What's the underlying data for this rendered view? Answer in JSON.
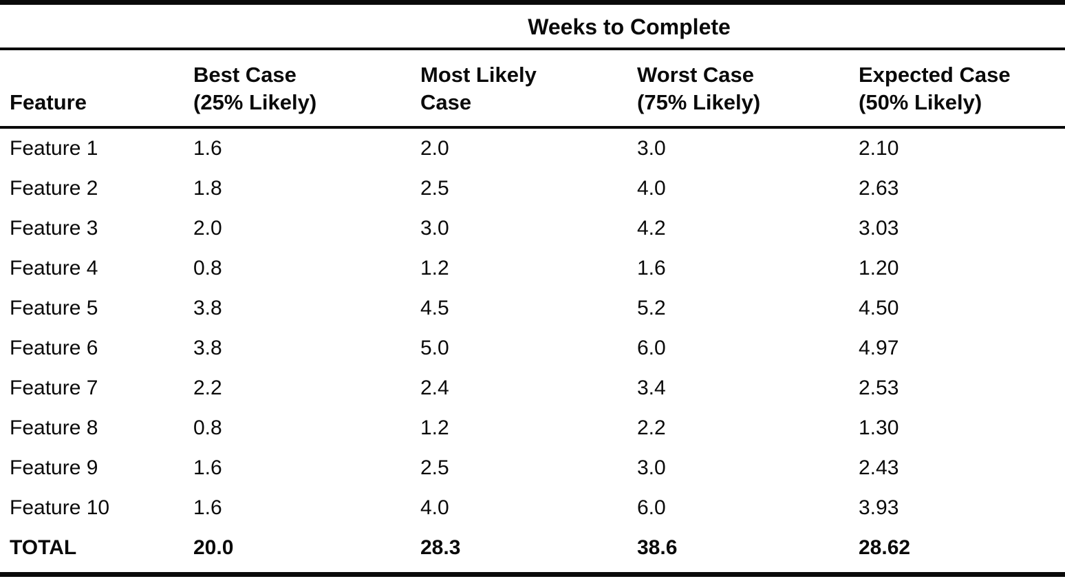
{
  "table": {
    "span_header": "Weeks to Complete",
    "column_headers": [
      {
        "line1": "Feature",
        "line2": ""
      },
      {
        "line1": "Best Case",
        "line2": "(25% Likely)"
      },
      {
        "line1": "Most Likely",
        "line2": "Case"
      },
      {
        "line1": "Worst Case",
        "line2": "(75% Likely)"
      },
      {
        "line1": "Expected Case",
        "line2": "(50% Likely)"
      }
    ],
    "rows": [
      {
        "cells": [
          "Feature 1",
          "1.6",
          "2.0",
          "3.0",
          "2.10"
        ]
      },
      {
        "cells": [
          "Feature 2",
          "1.8",
          "2.5",
          "4.0",
          "2.63"
        ]
      },
      {
        "cells": [
          "Feature 3",
          "2.0",
          "3.0",
          "4.2",
          "3.03"
        ]
      },
      {
        "cells": [
          "Feature 4",
          "0.8",
          "1.2",
          "1.6",
          "1.20"
        ]
      },
      {
        "cells": [
          "Feature 5",
          "3.8",
          "4.5",
          "5.2",
          "4.50"
        ]
      },
      {
        "cells": [
          "Feature 6",
          "3.8",
          "5.0",
          "6.0",
          "4.97"
        ]
      },
      {
        "cells": [
          "Feature 7",
          "2.2",
          "2.4",
          "3.4",
          "2.53"
        ]
      },
      {
        "cells": [
          "Feature 8",
          "0.8",
          "1.2",
          "2.2",
          "1.30"
        ]
      },
      {
        "cells": [
          "Feature 9",
          "1.6",
          "2.5",
          "3.0",
          "2.43"
        ]
      },
      {
        "cells": [
          "Feature 10",
          "1.6",
          "4.0",
          "6.0",
          "3.93"
        ]
      }
    ],
    "total_row": {
      "cells": [
        "TOTAL",
        "20.0",
        "28.3",
        "38.6",
        "28.62"
      ]
    },
    "colors": {
      "rule": "#0a0a0a",
      "text": "#0a0a0a",
      "background": "#ffffff"
    }
  },
  "chart_data": {
    "type": "table",
    "title": "Weeks to Complete",
    "columns": [
      "Feature",
      "Best Case (25% Likely)",
      "Most Likely Case",
      "Worst Case (75% Likely)",
      "Expected Case (50% Likely)"
    ],
    "rows": [
      [
        "Feature 1",
        1.6,
        2.0,
        3.0,
        2.1
      ],
      [
        "Feature 2",
        1.8,
        2.5,
        4.0,
        2.63
      ],
      [
        "Feature 3",
        2.0,
        3.0,
        4.2,
        3.03
      ],
      [
        "Feature 4",
        0.8,
        1.2,
        1.6,
        1.2
      ],
      [
        "Feature 5",
        3.8,
        4.5,
        5.2,
        4.5
      ],
      [
        "Feature 6",
        3.8,
        5.0,
        6.0,
        4.97
      ],
      [
        "Feature 7",
        2.2,
        2.4,
        3.4,
        2.53
      ],
      [
        "Feature 8",
        0.8,
        1.2,
        2.2,
        1.3
      ],
      [
        "Feature 9",
        1.6,
        2.5,
        3.0,
        2.43
      ],
      [
        "Feature 10",
        1.6,
        4.0,
        6.0,
        3.93
      ],
      [
        "TOTAL",
        20.0,
        28.3,
        38.6,
        28.62
      ]
    ]
  }
}
